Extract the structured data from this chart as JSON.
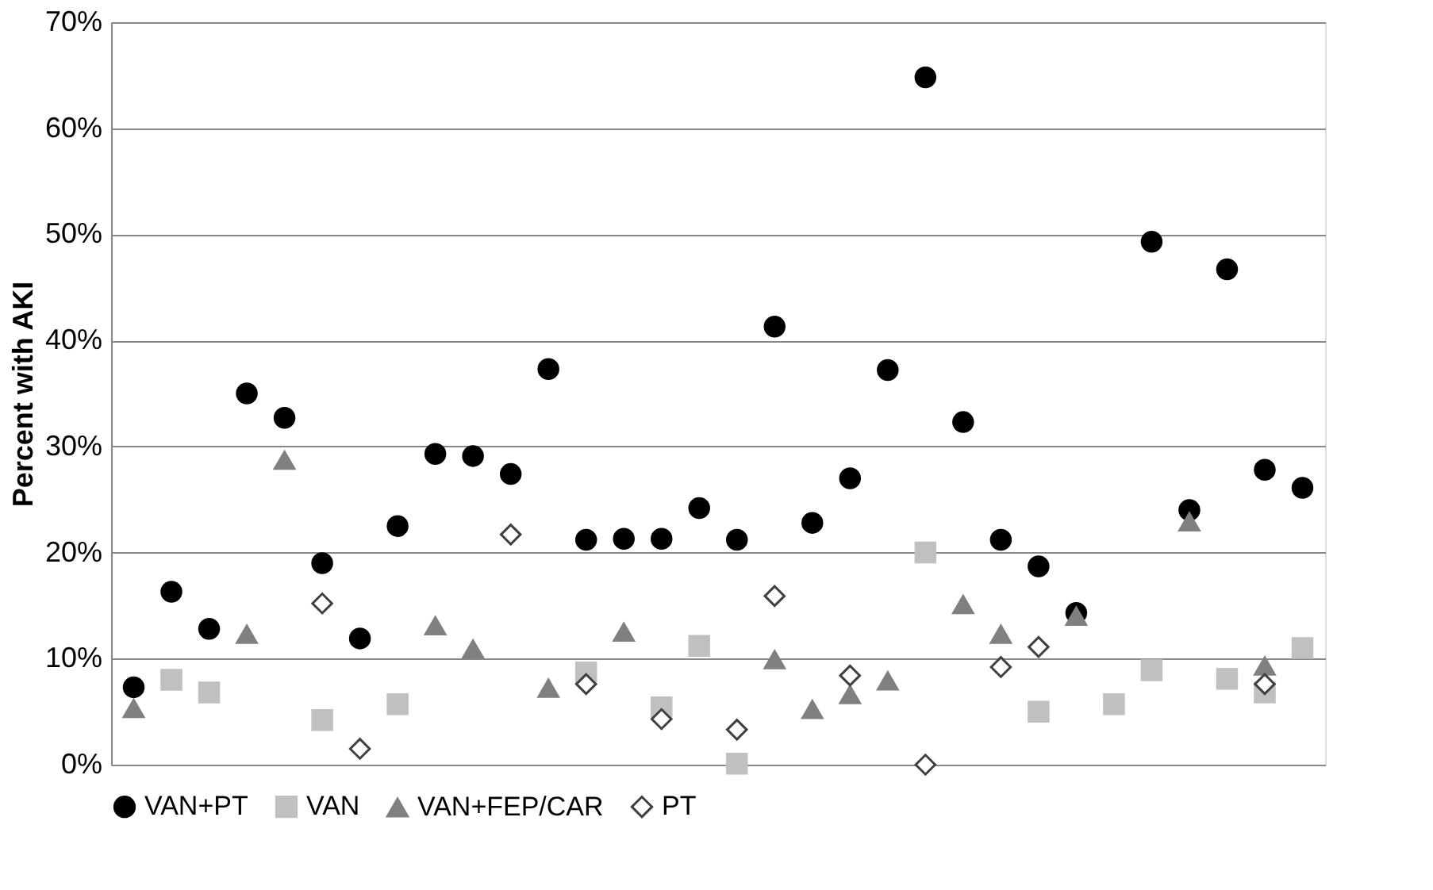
{
  "chart_data": {
    "type": "scatter",
    "ylabel": "Percent with AKI",
    "categories": [
      null,
      null,
      null,
      null,
      null,
      null,
      null,
      null,
      null,
      null,
      null,
      null,
      null,
      null,
      null,
      null,
      null,
      null,
      null,
      null,
      null,
      null,
      null,
      null,
      null,
      null,
      null,
      null,
      null,
      null,
      null,
      null
    ],
    "series": [
      {
        "name": "VAN+PT",
        "color": "#000000",
        "marker": "circle",
        "values": [
          7.3,
          16.3,
          12.8,
          35.0,
          32.7,
          19.0,
          11.9,
          22.5,
          29.3,
          29.1,
          27.4,
          37.3,
          21.2,
          21.3,
          21.3,
          24.2,
          21.2,
          41.3,
          22.8,
          27.0,
          37.2,
          64.8,
          32.3,
          21.2,
          18.7,
          14.3,
          null,
          49.3,
          24.0,
          46.7,
          27.8,
          26.1
        ]
      },
      {
        "name": "VAN",
        "color": "#c0c0c0",
        "marker": "square",
        "values": [
          null,
          8.0,
          6.8,
          null,
          null,
          4.2,
          null,
          5.7,
          null,
          null,
          null,
          null,
          8.7,
          null,
          5.4,
          11.2,
          0.1,
          null,
          null,
          null,
          null,
          20.0,
          null,
          null,
          5.0,
          null,
          5.7,
          8.9,
          null,
          8.1,
          6.8,
          11.0
        ]
      },
      {
        "name": "VAN+FEP/CAR",
        "color": "#808080",
        "marker": "triangle",
        "values": [
          5.3,
          null,
          null,
          12.3,
          28.7,
          null,
          null,
          null,
          13.1,
          10.9,
          null,
          7.2,
          null,
          12.5,
          null,
          null,
          null,
          9.9,
          5.2,
          6.6,
          7.9,
          null,
          15.1,
          12.3,
          null,
          14.0,
          null,
          null,
          22.9,
          null,
          9.3,
          null
        ]
      },
      {
        "name": "PT",
        "color": "#404040",
        "marker": "diamond",
        "values": [
          null,
          null,
          null,
          null,
          null,
          15.2,
          1.5,
          null,
          null,
          null,
          21.7,
          null,
          7.6,
          null,
          4.3,
          null,
          3.3,
          15.9,
          null,
          8.4,
          null,
          0.0,
          null,
          9.2,
          11.1,
          null,
          null,
          null,
          null,
          null,
          7.6,
          null
        ]
      }
    ],
    "ylim": [
      0,
      70
    ],
    "yticks": [
      {
        "value": 0,
        "label": "0%"
      },
      {
        "value": 10,
        "label": "10%"
      },
      {
        "value": 20,
        "label": "20%"
      },
      {
        "value": 30,
        "label": "30%"
      },
      {
        "value": 40,
        "label": "40%"
      },
      {
        "value": 50,
        "label": "50%"
      },
      {
        "value": 60,
        "label": "60%"
      },
      {
        "value": 70,
        "label": "70%"
      }
    ],
    "grid": "y",
    "legend": "bottom",
    "tick_labels": "y"
  }
}
